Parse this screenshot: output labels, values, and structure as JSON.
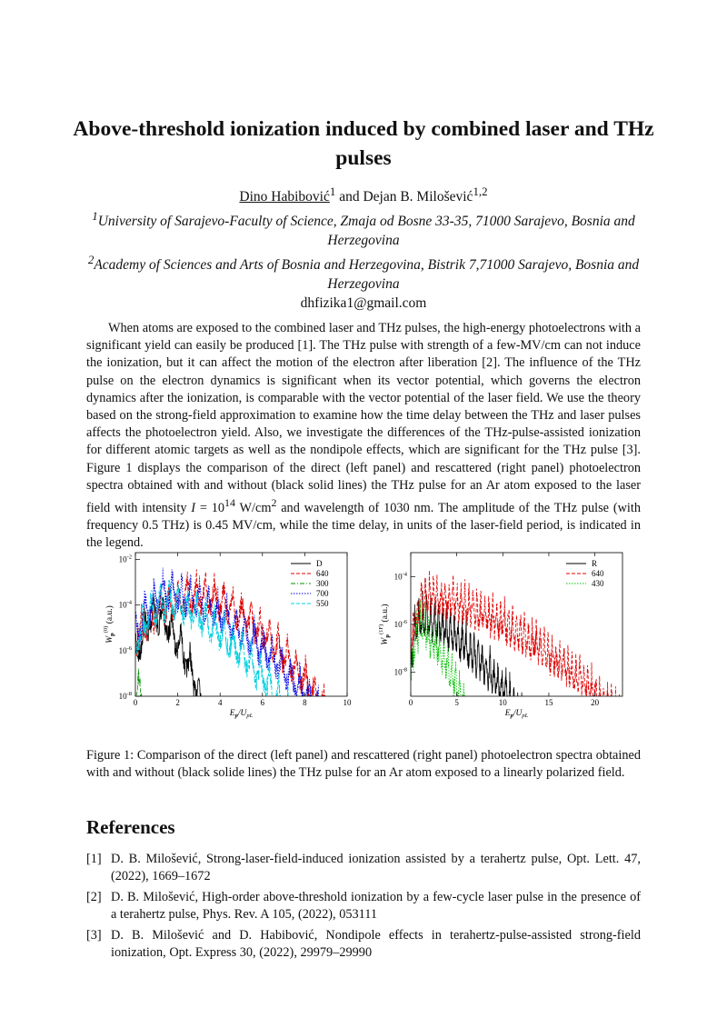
{
  "title": "Above-threshold ionization induced by combined laser and THz pulses",
  "authors": {
    "author1": "Dino Habibović",
    "author1_sup": "1",
    "conj": "and Dejan B. Milošević",
    "author2_sup": "1,2"
  },
  "affiliations": [
    {
      "sup": "1",
      "text": "University of Sarajevo-Faculty of Science, Zmaja od Bosne 33-35, 71000 Sarajevo, Bosnia and Herzegovina"
    },
    {
      "sup": "2",
      "text": "Academy of Sciences and Arts of Bosnia and Herzegovina, Bistrik 7,71000 Sarajevo, Bosnia and Herzegovina"
    }
  ],
  "email": "dhfizika1@gmail.com",
  "abstract": {
    "part1": "When atoms are exposed to the combined laser and THz pulses, the high-energy photoelectrons with a significant yield can easily be produced [1]. The THz pulse with strength of a few-MV/cm can not induce the ionization, but it can affect the motion of the electron after liberation [2]. The influence of the THz pulse on the electron dynamics is significant when its vector potential, which governs the electron dynamics after the ionization, is comparable with the vector potential of the laser field. We use the theory based on the strong-field approximation to examine how the time delay between the THz and laser pulses affects the photoelectron yield. Also, we investigate the differences of the THz-pulse-assisted ionization for different atomic targets as well as the nondipole effects, which are significant for the THz pulse [3]. Figure 1 displays the comparison of the direct (left panel) and rescattered (right panel) photoelectron spectra obtained with and without (black solid lines) the THz pulse for an Ar atom exposed to the laser field with intensity ",
    "intensity_symbol": "I",
    "intensity_eq": " = 10",
    "intensity_exp": "14",
    "intensity_unit": " W/cm",
    "intensity_unit_exp": "2",
    "part2": " and wavelength of 1030 nm. The amplitude of the THz pulse (with frequency 0.5 THz) is 0.45 MV/cm, while the time delay, in units of the laser-field period, is indicated in the legend."
  },
  "caption": "Figure 1: Comparison of the direct (left panel) and rescattered (right panel) photoelectron spectra obtained with and without (black solide lines) the THz pulse for an Ar atom exposed to a linearly polarized field.",
  "references_heading": "References",
  "references": [
    {
      "num": "[1]",
      "text": "D. B. Milošević, Strong-laser-field-induced ionization assisted by a terahertz pulse, Opt. Lett. 47, (2022), 1669–1672"
    },
    {
      "num": "[2]",
      "text": "D. B. Milošević, High-order above-threshold ionization by a few-cycle laser pulse in the presence of a terahertz pulse, Phys. Rev. A 105, (2022), 053111"
    },
    {
      "num": "[3]",
      "text": "D. B. Milošević and D. Habibović, Nondipole effects in terahertz-pulse-assisted strong-field ionization, Opt. Express 30, (2022), 29979–29990"
    }
  ],
  "chart_data": [
    {
      "type": "line",
      "panel": "left",
      "ylabel": "W_p^(0) (a.u.)",
      "xlabel": "E_p/U_pL",
      "y_scale": "log",
      "xlim": [
        0,
        10
      ],
      "ylim": [
        1e-08,
        0.02
      ],
      "x_ticks": [
        0,
        2,
        4,
        6,
        8,
        10
      ],
      "y_tick_labels": [
        "10-2",
        "10-4",
        "10-6",
        "10-8"
      ],
      "legend_position": "top-right",
      "series": [
        {
          "name": "D",
          "color": "#000000",
          "dash": "solid",
          "cutoff": 3.4,
          "peak_x": 1.0,
          "peak_log": -3.2
        },
        {
          "name": "640",
          "color": "#e00000",
          "dash": "dashed",
          "cutoff": 9.3,
          "peak_x": 3.0,
          "peak_log": -2.3
        },
        {
          "name": "300",
          "color": "#009000",
          "dash": "dashdot",
          "cutoff": 0.5,
          "peak_x": 0.15,
          "peak_log": -6.5
        },
        {
          "name": "700",
          "color": "#0000e0",
          "dash": "dotted",
          "cutoff": 9.0,
          "peak_x": 1.5,
          "peak_log": -2.2
        },
        {
          "name": "550",
          "color": "#00d0e0",
          "dash": "dashed",
          "cutoff": 7.4,
          "peak_x": 1.5,
          "peak_log": -2.6
        }
      ]
    },
    {
      "type": "line",
      "panel": "right",
      "ylabel": "W_p^(1F) (a.u.)",
      "xlabel": "E_p/U_pL",
      "y_scale": "log",
      "xlim": [
        0,
        23
      ],
      "ylim": [
        1e-09,
        0.001
      ],
      "x_ticks": [
        0,
        5,
        10,
        15,
        20
      ],
      "y_tick_labels": [
        "10-4",
        "10-6",
        "10-8"
      ],
      "legend_position": "top-right",
      "series": [
        {
          "name": "R",
          "color": "#000000",
          "dash": "solid",
          "cutoff": 12.2,
          "peak_x": 1.0,
          "peak_log": -4.5
        },
        {
          "name": "640",
          "color": "#e00000",
          "dash": "dashed",
          "cutoff": 23.0,
          "peak_x": 2.0,
          "peak_log": -3.6
        },
        {
          "name": "430",
          "color": "#00c000",
          "dash": "dotted",
          "cutoff": 6.5,
          "peak_x": 1.0,
          "peak_log": -5.0
        }
      ]
    }
  ]
}
